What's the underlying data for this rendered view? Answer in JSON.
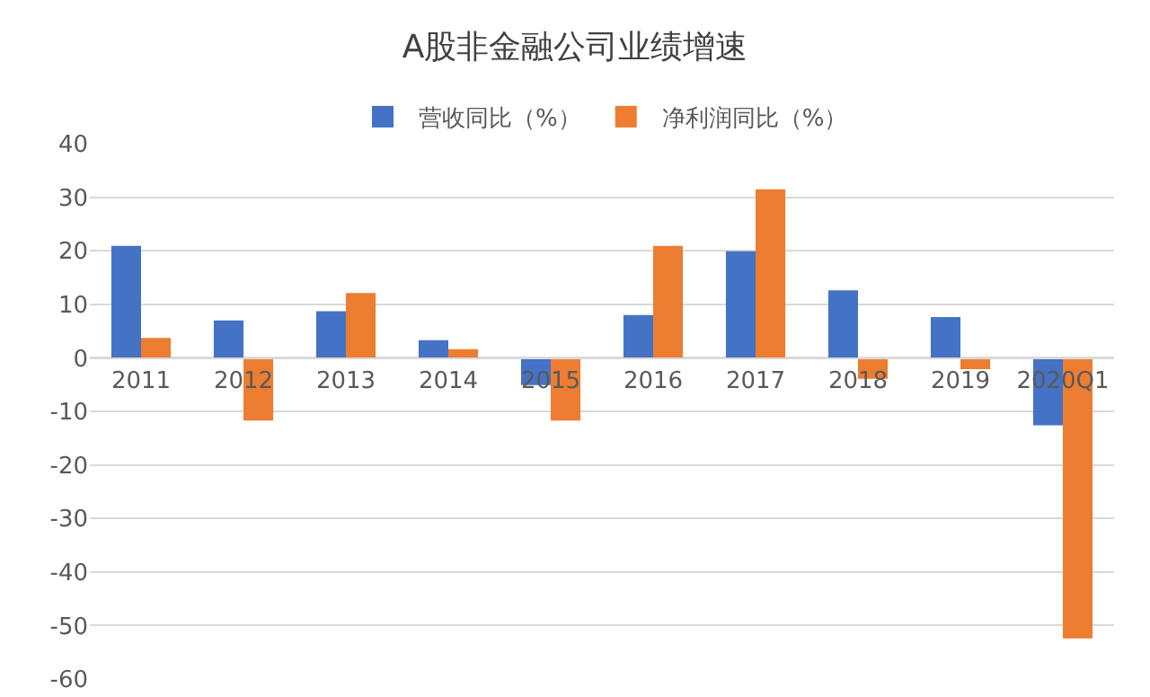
{
  "chart_data": {
    "type": "bar",
    "title": "A股非金融公司业绩增速",
    "categories": [
      "2011",
      "2012",
      "2013",
      "2014",
      "2015",
      "2016",
      "2017",
      "2018",
      "2019",
      "2020Q1"
    ],
    "series": [
      {
        "name": "营收同比（%）",
        "color": "#4472c4",
        "values": [
          20.9,
          7.0,
          8.7,
          3.3,
          -5.1,
          8.0,
          19.9,
          12.6,
          7.6,
          -12.6
        ]
      },
      {
        "name": "净利润同比（%）",
        "color": "#ed7d31",
        "values": [
          3.7,
          -11.7,
          12.1,
          1.6,
          -11.7,
          20.9,
          31.5,
          -3.9,
          -2.1,
          -52.4
        ]
      }
    ],
    "ylim": [
      -60,
      40
    ],
    "yticks": [
      -60,
      -50,
      -40,
      -30,
      -20,
      -10,
      0,
      10,
      20,
      30,
      40
    ],
    "grid": "y",
    "legend": "top"
  }
}
